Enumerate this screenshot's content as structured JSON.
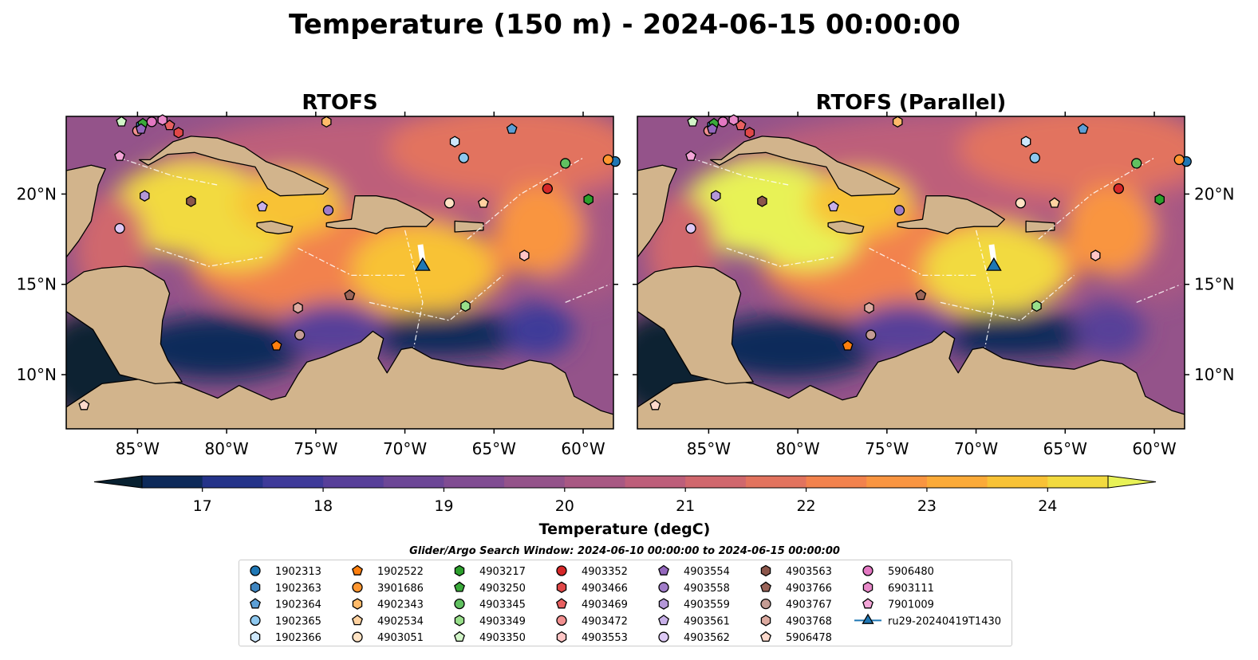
{
  "title": "Temperature (150 m) - 2024-06-15 00:00:00",
  "panels": [
    {
      "title": "RTOFS",
      "glider_extra": 0
    },
    {
      "title": "RTOFS (Parallel)",
      "glider_extra": 1
    }
  ],
  "map_extent": {
    "lon": [
      -89,
      -58.3
    ],
    "lat": [
      7,
      24.3
    ]
  },
  "lon_ticks": [
    "85°W",
    "80°W",
    "75°W",
    "70°W",
    "65°W",
    "60°W"
  ],
  "lon_tick_values": [
    -85,
    -80,
    -75,
    -70,
    -65,
    -60
  ],
  "lat_ticks": [
    "20°N",
    "15°N",
    "10°N"
  ],
  "lat_tick_values": [
    20,
    15,
    10
  ],
  "colorbar": {
    "label": "Temperature (degC)",
    "ticks": [
      "17",
      "18",
      "19",
      "20",
      "21",
      "22",
      "23",
      "24"
    ],
    "range": [
      16.5,
      24.5
    ],
    "colors": [
      "#082131",
      "#0d2a5a",
      "#243389",
      "#3e3a99",
      "#573f99",
      "#6c4696",
      "#804c92",
      "#94538a",
      "#a85883",
      "#bd5e7a",
      "#d0676d",
      "#e2735e",
      "#f2824d",
      "#f99541",
      "#fbaa38",
      "#f8c236",
      "#f2da3f",
      "#e8f257"
    ]
  },
  "chart_data": {
    "type": "scatter",
    "title": "Temperature (150 m) - 2024-06-15 00:00:00",
    "panels": [
      "RTOFS",
      "RTOFS (Parallel)"
    ],
    "xlim": [
      -89,
      -58.3
    ],
    "ylim": [
      7,
      24.3
    ],
    "colorbar_label": "Temperature (degC)",
    "colorbar_range": [
      16.5,
      24.5
    ],
    "search_window": "Glider/Argo Search Window: 2024-06-10 00:00:00 to 2024-06-15 00:00:00",
    "floats": [
      {
        "name": "1902313",
        "marker": "circle",
        "color": "#1f77b4",
        "lon": -58.2,
        "lat": 21.8
      },
      {
        "name": "1902363",
        "marker": "hexagon",
        "color": "#3f85c0",
        "lon": -84.8,
        "lat": 23.8
      },
      {
        "name": "1902364",
        "marker": "pentagon",
        "color": "#5c9fd6",
        "lon": -64.0,
        "lat": 23.6
      },
      {
        "name": "1902365",
        "marker": "circle",
        "color": "#8ec8ef",
        "lon": -66.7,
        "lat": 22.0
      },
      {
        "name": "1902366",
        "marker": "hexagon",
        "color": "#cde7fb",
        "lon": -67.2,
        "lat": 22.9
      },
      {
        "name": "1902522",
        "marker": "pentagon",
        "color": "#ff7f0e",
        "lon": -77.2,
        "lat": 11.6
      },
      {
        "name": "3901686",
        "marker": "circle",
        "color": "#ff9630",
        "lon": -58.6,
        "lat": 21.9
      },
      {
        "name": "4902343",
        "marker": "hexagon",
        "color": "#ffbb6a",
        "lon": -74.4,
        "lat": 24.0
      },
      {
        "name": "4902534",
        "marker": "pentagon",
        "color": "#ffd2a0",
        "lon": -65.6,
        "lat": 19.5
      },
      {
        "name": "4903051",
        "marker": "circle",
        "color": "#ffe3c4",
        "lon": -67.5,
        "lat": 19.5
      },
      {
        "name": "4903217",
        "marker": "hexagon",
        "color": "#2ca02c",
        "lon": -59.7,
        "lat": 19.7
      },
      {
        "name": "4903250",
        "marker": "pentagon",
        "color": "#3aaa3a",
        "lon": -84.7,
        "lat": 23.9
      },
      {
        "name": "4903345",
        "marker": "circle",
        "color": "#60c060",
        "lon": -61.0,
        "lat": 21.7
      },
      {
        "name": "4903349",
        "marker": "hexagon",
        "color": "#98df8a",
        "lon": -66.6,
        "lat": 13.8
      },
      {
        "name": "4903350",
        "marker": "pentagon",
        "color": "#d2f5c8",
        "lon": -85.9,
        "lat": 24.0
      },
      {
        "name": "4903352",
        "marker": "circle",
        "color": "#d62728",
        "lon": -62.0,
        "lat": 20.3
      },
      {
        "name": "4903466",
        "marker": "hexagon",
        "color": "#e04848",
        "lon": -82.7,
        "lat": 23.4
      },
      {
        "name": "4903469",
        "marker": "pentagon",
        "color": "#e86060",
        "lon": -83.2,
        "lat": 23.8
      },
      {
        "name": "4903472",
        "marker": "circle",
        "color": "#f29090",
        "lon": -85.0,
        "lat": 23.5
      },
      {
        "name": "4903553",
        "marker": "hexagon",
        "color": "#ffc5c5",
        "lon": -63.3,
        "lat": 16.6
      },
      {
        "name": "4903554",
        "marker": "pentagon",
        "color": "#9467bd",
        "lon": -84.8,
        "lat": 23.6
      },
      {
        "name": "4903558",
        "marker": "circle",
        "color": "#a07cc8",
        "lon": -74.3,
        "lat": 19.1
      },
      {
        "name": "4903559",
        "marker": "hexagon",
        "color": "#b497d8",
        "lon": -84.6,
        "lat": 19.9
      },
      {
        "name": "4903561",
        "marker": "pentagon",
        "color": "#c8b0e8",
        "lon": -78.0,
        "lat": 19.3
      },
      {
        "name": "4903562",
        "marker": "circle",
        "color": "#ddc9f5",
        "lon": -86.0,
        "lat": 18.1
      },
      {
        "name": "4903563",
        "marker": "hexagon",
        "color": "#8c564b",
        "lon": -82.0,
        "lat": 19.6
      },
      {
        "name": "4903766",
        "marker": "pentagon",
        "color": "#9a6459",
        "lon": -73.1,
        "lat": 14.4
      },
      {
        "name": "4903767",
        "marker": "circle",
        "color": "#c49c94",
        "lon": -75.9,
        "lat": 12.2
      },
      {
        "name": "4903768",
        "marker": "hexagon",
        "color": "#dcaaa0",
        "lon": -76.0,
        "lat": 13.7
      },
      {
        "name": "5906478",
        "marker": "pentagon",
        "color": "#fcd9cc",
        "lon": -88.0,
        "lat": 8.3
      },
      {
        "name": "5906480",
        "marker": "circle",
        "color": "#e377c2",
        "lon": -84.2,
        "lat": 24.0
      },
      {
        "name": "6903111",
        "marker": "hexagon",
        "color": "#e889c9",
        "lon": -83.6,
        "lat": 24.1
      },
      {
        "name": "7901009",
        "marker": "pentagon",
        "color": "#f4a6d8",
        "lon": -86.0,
        "lat": 22.1
      }
    ],
    "glider": {
      "name": "ru29-20240419T1430",
      "marker": "triangle",
      "color": "#1f77b4",
      "lon": -69.0,
      "lat": 16.0
    }
  },
  "legend": {
    "header": "Glider/Argo Search Window: 2024-06-10 00:00:00 to 2024-06-15 00:00:00"
  }
}
